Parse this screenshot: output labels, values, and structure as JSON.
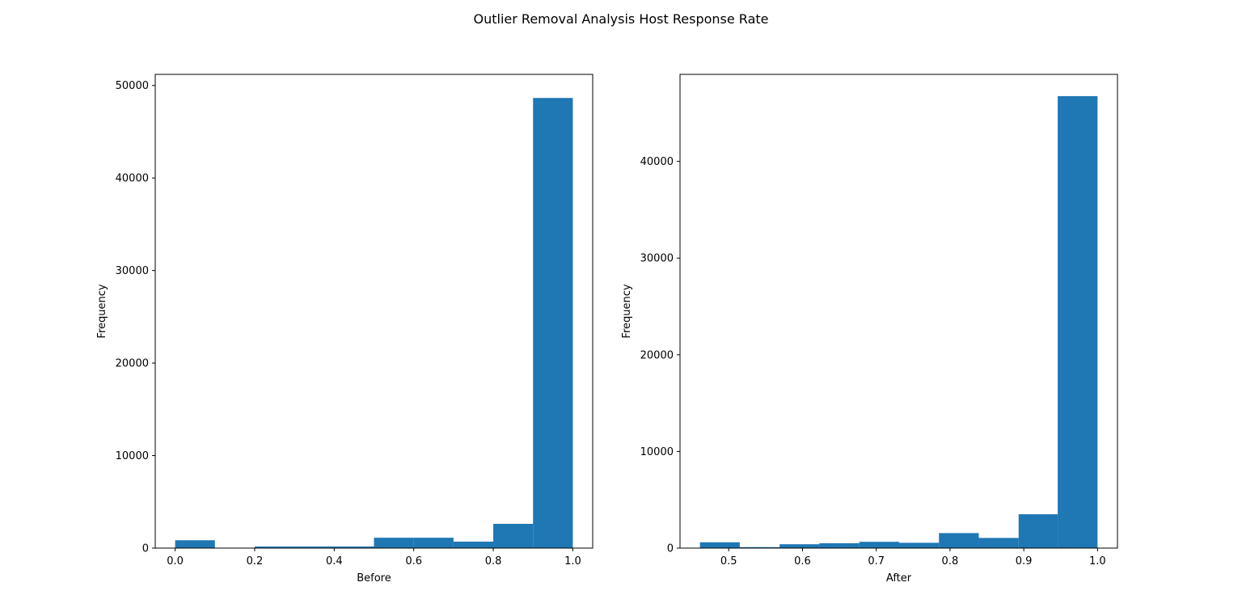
{
  "figure": {
    "suptitle": "Outlier Removal Analysis Host Response Rate"
  },
  "colors": {
    "bar": "#1f77b4",
    "axis": "#000000",
    "background": "#ffffff"
  },
  "chart_data": [
    {
      "type": "bar",
      "subtype": "histogram",
      "title": "",
      "xlabel": "Before",
      "ylabel": "Frequency",
      "xlim": [
        -0.05,
        1.05
      ],
      "ylim": [
        0,
        51200
      ],
      "xticks": [
        0.0,
        0.2,
        0.4,
        0.6,
        0.8,
        1.0
      ],
      "xtick_labels": [
        "0.0",
        "0.2",
        "0.4",
        "0.6",
        "0.8",
        "1.0"
      ],
      "yticks": [
        0,
        10000,
        20000,
        30000,
        40000,
        50000
      ],
      "ytick_labels": [
        "0",
        "10000",
        "20000",
        "30000",
        "40000",
        "50000"
      ],
      "bin_edges": [
        0.0,
        0.1,
        0.2,
        0.3,
        0.4,
        0.5,
        0.6,
        0.7,
        0.8,
        0.9,
        1.0
      ],
      "values": [
        850,
        0,
        170,
        170,
        170,
        1120,
        1120,
        700,
        2620,
        48650
      ],
      "grid": false
    },
    {
      "type": "bar",
      "subtype": "histogram",
      "title": "",
      "xlabel": "After",
      "ylabel": "Frequency",
      "xlim": [
        0.434,
        1.027
      ],
      "ylim": [
        0,
        49000
      ],
      "xticks": [
        0.5,
        0.6,
        0.7,
        0.8,
        0.9,
        1.0
      ],
      "xtick_labels": [
        "0.5",
        "0.6",
        "0.7",
        "0.8",
        "0.9",
        "1.0"
      ],
      "yticks": [
        0,
        10000,
        20000,
        30000,
        40000
      ],
      "ytick_labels": [
        "0",
        "10000",
        "20000",
        "30000",
        "40000"
      ],
      "bin_edges": [
        0.461,
        0.515,
        0.569,
        0.623,
        0.677,
        0.731,
        0.785,
        0.839,
        0.893,
        0.946,
        1.0
      ],
      "values": [
        600,
        100,
        400,
        500,
        650,
        550,
        1550,
        1050,
        3500,
        46750
      ],
      "grid": false
    }
  ]
}
